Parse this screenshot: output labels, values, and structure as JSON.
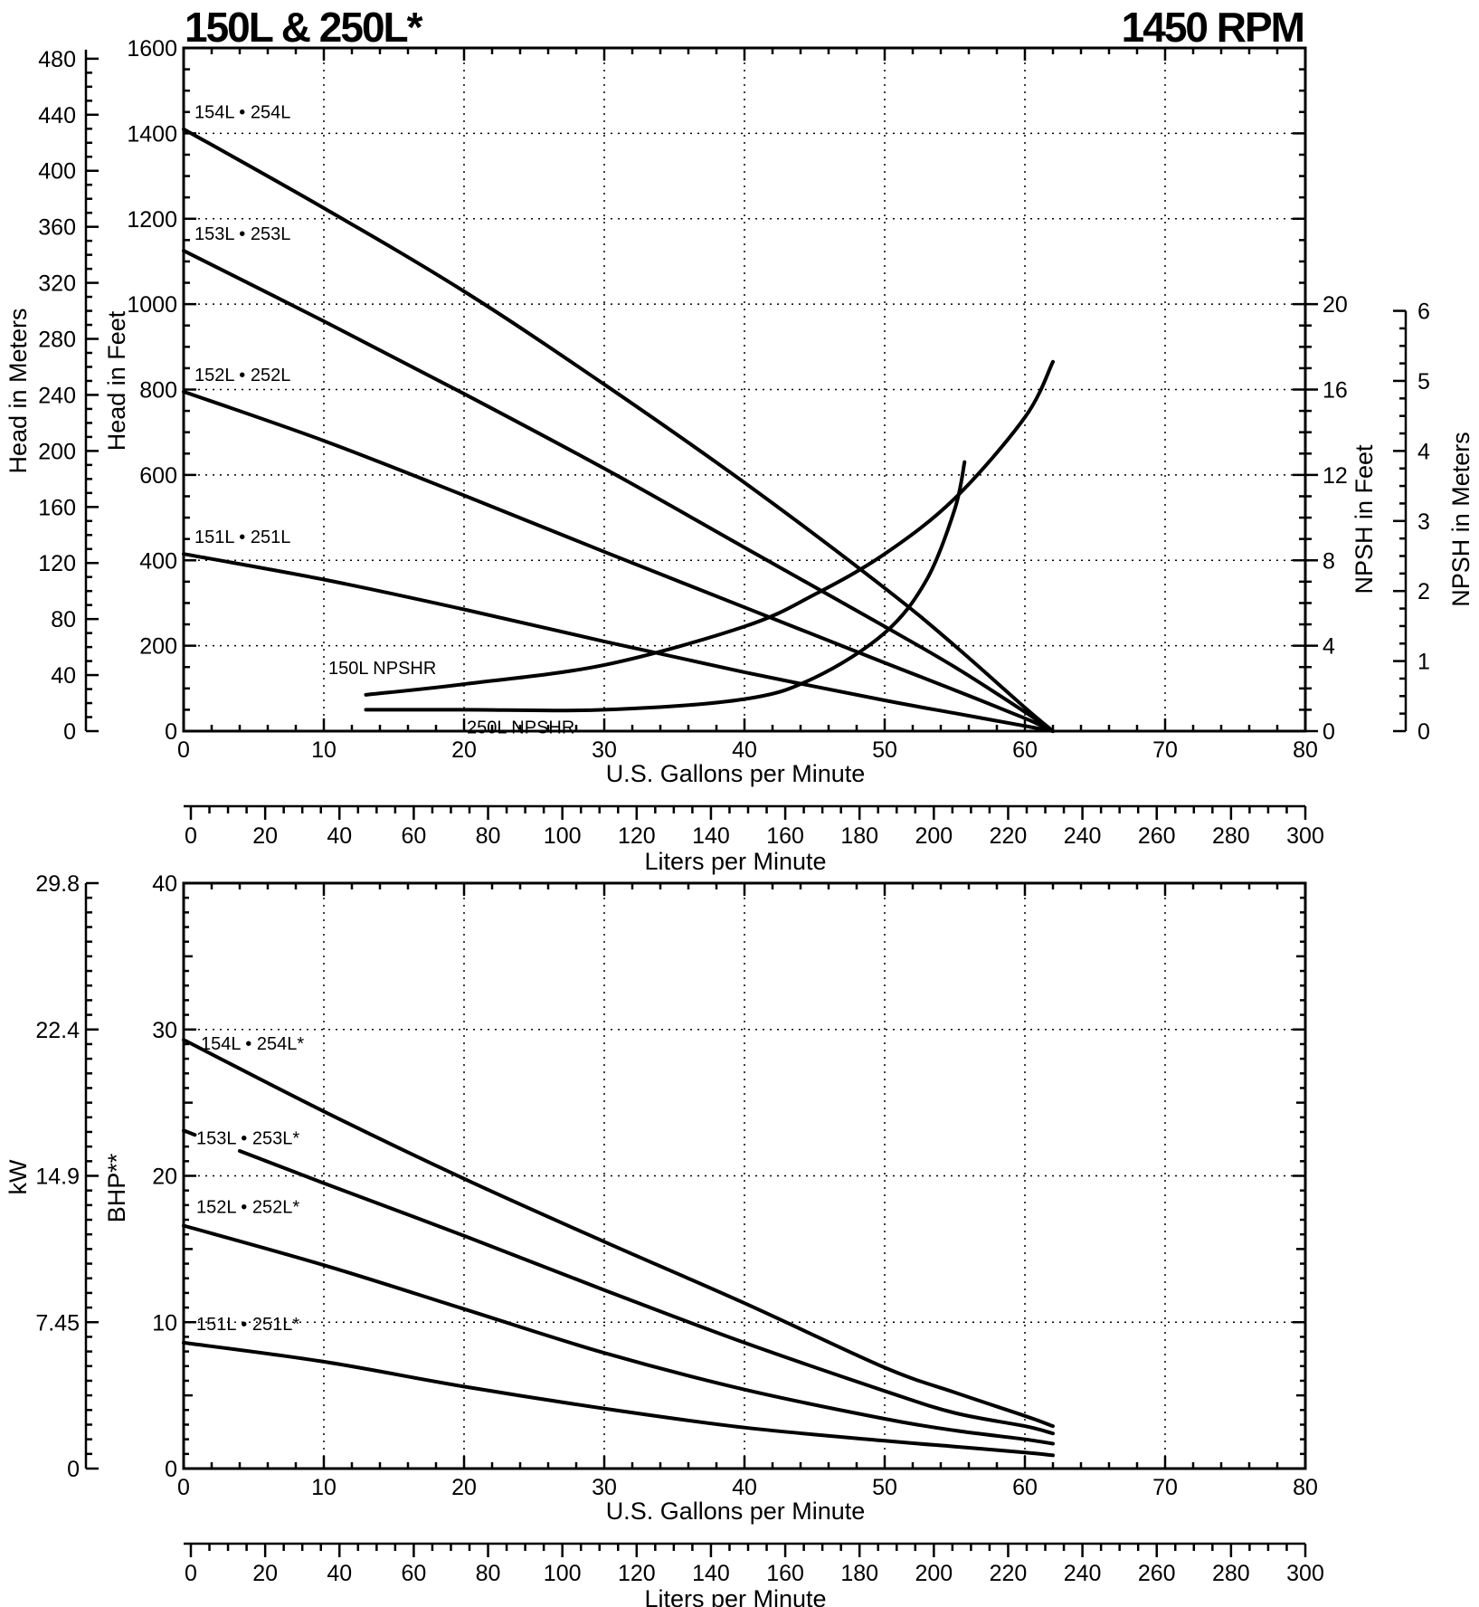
{
  "title": "150L & 250L*",
  "speed": "1450 RPM",
  "chart_data": [
    {
      "type": "line",
      "name": "head",
      "xlabel": "U.S. Gallons per Minute",
      "x2label": "Liters per Minute",
      "ylabel": "Head in Feet",
      "y2label": "Head in Meters",
      "y3label": "NPSH in Feet",
      "y4label": "NPSH in Meters",
      "xlim": [
        0,
        80
      ],
      "ylim": [
        0,
        1600
      ],
      "x_ticks": [
        "0",
        "10",
        "20",
        "30",
        "40",
        "50",
        "60",
        "70",
        "80"
      ],
      "y_ticks": [
        "0",
        "200",
        "400",
        "600",
        "800",
        "1000",
        "1200",
        "1400",
        "1600"
      ],
      "meters_ticks": [
        "0",
        "40",
        "80",
        "120",
        "160",
        "200",
        "240",
        "280",
        "320",
        "360",
        "400",
        "440",
        "480"
      ],
      "npsh_ft_ticks": [
        "0",
        "4",
        "8",
        "12",
        "16",
        "20"
      ],
      "npsh_m_ticks": [
        "0",
        "1",
        "2",
        "3",
        "4",
        "5",
        "6"
      ],
      "lpm_ticks": [
        "0",
        "20",
        "40",
        "60",
        "80",
        "100",
        "120",
        "140",
        "160",
        "180",
        "200",
        "220",
        "240",
        "260",
        "280",
        "300"
      ],
      "series": [
        {
          "name": "154L • 254L",
          "x": [
            0,
            10,
            20,
            30,
            40,
            50,
            55,
            60,
            62
          ],
          "y": [
            1410,
            1225,
            1030,
            812,
            582,
            335,
            200,
            55,
            0
          ]
        },
        {
          "name": "153L • 253L",
          "x": [
            0,
            10,
            20,
            30,
            40,
            50,
            55,
            60,
            62
          ],
          "y": [
            1125,
            960,
            790,
            615,
            430,
            245,
            150,
            45,
            0
          ]
        },
        {
          "name": "152L • 252L",
          "x": [
            0,
            10,
            20,
            30,
            40,
            50,
            55,
            60,
            62
          ],
          "y": [
            795,
            680,
            552,
            420,
            290,
            160,
            96,
            30,
            0
          ]
        },
        {
          "name": "151L • 251L",
          "x": [
            0,
            10,
            20,
            30,
            40,
            50,
            55,
            60,
            62
          ],
          "y": [
            415,
            355,
            285,
            210,
            138,
            72,
            42,
            12,
            0
          ]
        },
        {
          "name": "150L NPSHR",
          "unit": "NPSH in Feet",
          "x": [
            13,
            20,
            30,
            40,
            45,
            50,
            55,
            60,
            62
          ],
          "y": [
            1.7,
            2.2,
            3.1,
            4.9,
            6.4,
            8.3,
            10.9,
            14.7,
            17.3
          ]
        },
        {
          "name": "250L NPSHR",
          "unit": "NPSH in Feet",
          "x": [
            13,
            20,
            30,
            40,
            45,
            50,
            53,
            55,
            55.7
          ],
          "y": [
            1.0,
            1.0,
            1.0,
            1.5,
            2.5,
            4.6,
            7.1,
            10.4,
            12.6
          ]
        }
      ]
    },
    {
      "type": "line",
      "name": "power",
      "xlabel": "U.S. Gallons per Minute",
      "x2label": "Liters per Minute",
      "ylabel": "BHP**",
      "y2label": "kW",
      "xlim": [
        0,
        80
      ],
      "ylim": [
        0,
        40
      ],
      "x_ticks": [
        "0",
        "10",
        "20",
        "30",
        "40",
        "50",
        "60",
        "70",
        "80"
      ],
      "y_ticks": [
        "0",
        "10",
        "20",
        "30",
        "40"
      ],
      "kw_ticks": [
        "0",
        "7.45",
        "14.9",
        "22.4",
        "29.8"
      ],
      "lpm_ticks": [
        "0",
        "20",
        "40",
        "60",
        "80",
        "100",
        "120",
        "140",
        "160",
        "180",
        "200",
        "220",
        "240",
        "260",
        "280",
        "300"
      ],
      "series": [
        {
          "name": "154L • 254L*",
          "x": [
            0,
            10,
            20,
            30,
            40,
            50,
            55,
            60,
            62
          ],
          "y": [
            29.3,
            24.4,
            19.8,
            15.5,
            11.3,
            6.9,
            5.2,
            3.6,
            2.9
          ]
        },
        {
          "name": "153L • 253L*",
          "x": [
            0,
            0.8,
            4,
            10,
            20,
            30,
            40,
            50,
            55,
            60,
            62
          ],
          "y": [
            23.1,
            22.8,
            21.7,
            19.5,
            15.9,
            12.2,
            8.6,
            5.3,
            3.8,
            2.9,
            2.4
          ]
        },
        {
          "name": "152L • 252L*",
          "x": [
            0,
            10,
            20,
            30,
            40,
            50,
            55,
            60,
            62
          ],
          "y": [
            16.6,
            13.9,
            10.9,
            7.9,
            5.4,
            3.4,
            2.6,
            2.0,
            1.7
          ]
        },
        {
          "name": "151L • 251L*",
          "x": [
            0,
            10,
            20,
            30,
            40,
            50,
            55,
            60,
            62
          ],
          "y": [
            8.6,
            7.3,
            5.6,
            4.1,
            2.8,
            1.9,
            1.5,
            1.1,
            0.9
          ]
        }
      ]
    }
  ]
}
